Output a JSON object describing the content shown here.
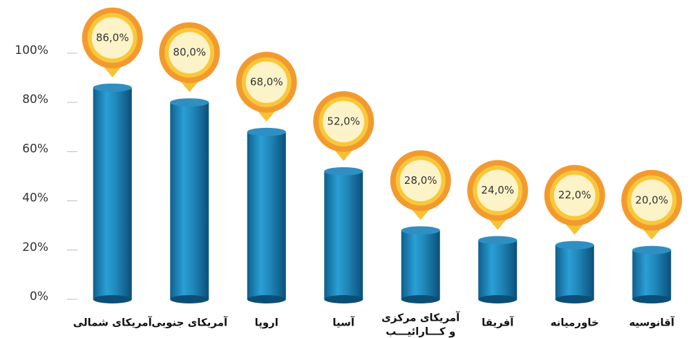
{
  "chart_data": {
    "type": "bar",
    "categories": [
      "آمریکای شمالی",
      "آمریکای جنوبی",
      "اروپا",
      "آسیا",
      [
        "آمریکای مرکزی",
        "و کـــارائیـــب"
      ],
      "آفریقا",
      "خاورمیانه",
      "آقانوسیه"
    ],
    "values": [
      86,
      80,
      68,
      52,
      28,
      24,
      22,
      20
    ],
    "value_labels": [
      "86,0%",
      "80,0%",
      "68,0%",
      "52,0%",
      "28,0%",
      "24,0%",
      "22,0%",
      "20,0%"
    ],
    "color": "#1f86b8",
    "ylim": [
      0,
      100
    ],
    "yticks": [
      {
        "value": 0,
        "label": "0%"
      },
      {
        "value": 20,
        "label": "20%"
      },
      {
        "value": 40,
        "label": "40%"
      },
      {
        "value": 60,
        "label": "60%"
      },
      {
        "value": 80,
        "label": "80%"
      },
      {
        "value": 100,
        "label": "100%"
      }
    ],
    "grid": true
  }
}
